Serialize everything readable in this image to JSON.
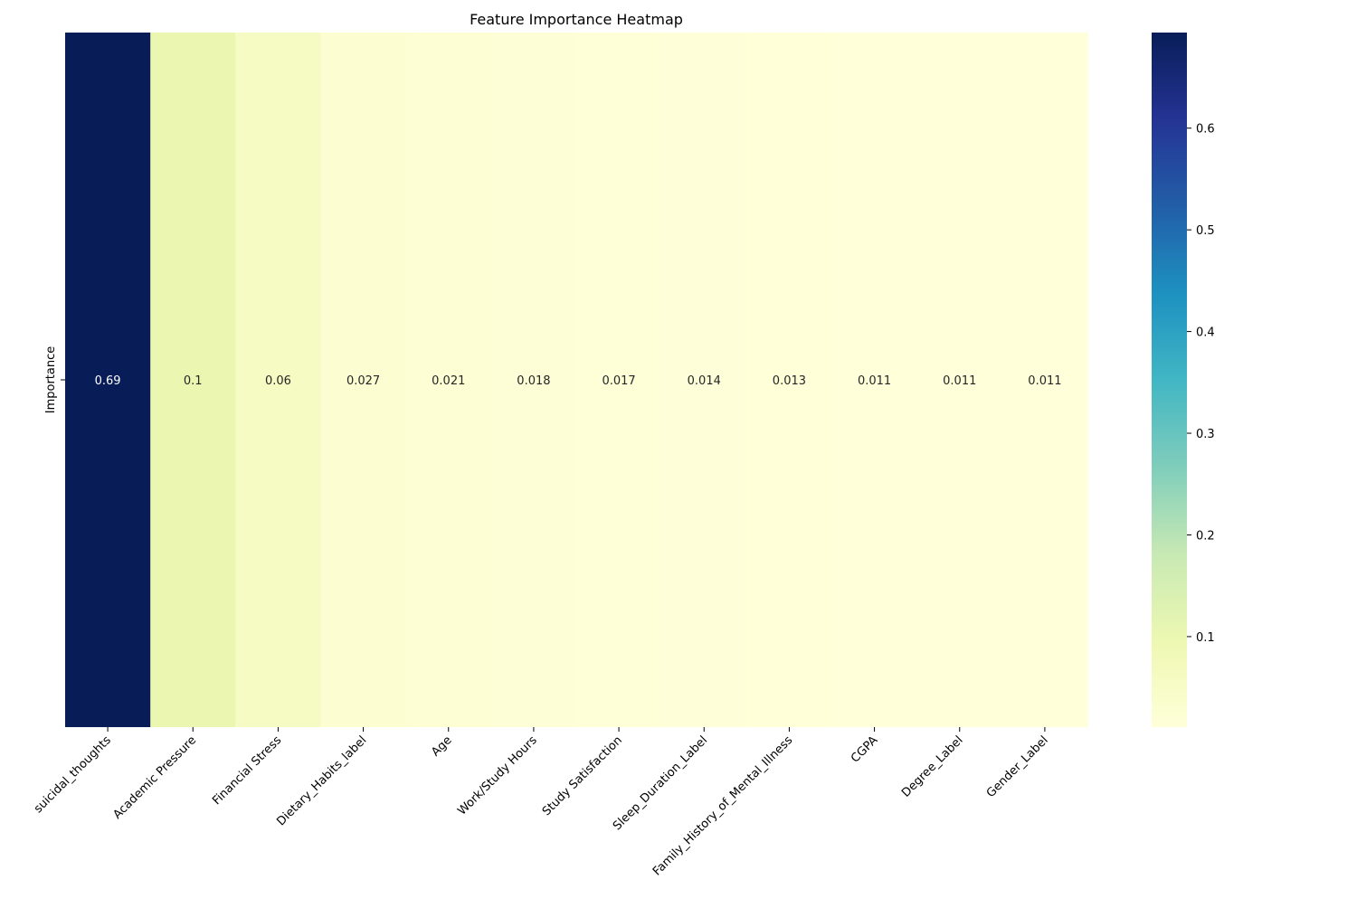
{
  "chart_data": {
    "type": "heatmap",
    "title": "Feature Importance Heatmap",
    "rows": [
      "Importance"
    ],
    "columns": [
      "suicidal_thoughts",
      "Academic Pressure",
      "Financial Stress",
      "Dietary_Habits_label",
      "Age",
      "Work/Study Hours",
      "Study Satisfaction",
      "Sleep_Duration_Label",
      "Family_History_of_Mental_Illness",
      "CGPA",
      "Degree_Label",
      "Gender_Label"
    ],
    "values": [
      [
        0.694,
        0.1,
        0.06,
        0.027,
        0.021,
        0.018,
        0.017,
        0.014,
        0.013,
        0.011,
        0.011,
        0.011
      ]
    ],
    "annotations": [
      "0.69",
      "0.1",
      "0.06",
      "0.027",
      "0.021",
      "0.018",
      "0.017",
      "0.014",
      "0.013",
      "0.011",
      "0.011",
      "0.011"
    ],
    "colormap": "YlGnBu",
    "colorbar": {
      "range": [
        0.011,
        0.694
      ],
      "ticks": [
        0.1,
        0.2,
        0.3,
        0.4,
        0.5,
        0.6
      ],
      "tick_labels": [
        "0.1",
        "0.2",
        "0.3",
        "0.4",
        "0.5",
        "0.6"
      ]
    }
  }
}
